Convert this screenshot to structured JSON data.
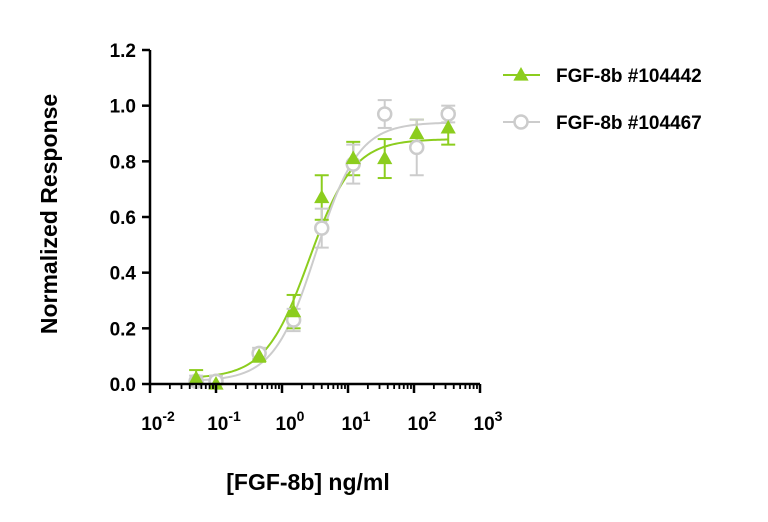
{
  "chart_data": {
    "type": "scatter",
    "xlabel": "[FGF-8b] ng/ml",
    "ylabel": "Normalized Response",
    "xscale": "log",
    "xlim": [
      0.01,
      1000
    ],
    "ylim": [
      0,
      1.2
    ],
    "x_ticks": [
      {
        "value": 0.01,
        "base": "10",
        "exp": "-2"
      },
      {
        "value": 0.1,
        "base": "10",
        "exp": "-1"
      },
      {
        "value": 1,
        "base": "10",
        "exp": "0"
      },
      {
        "value": 10,
        "base": "10",
        "exp": "1"
      },
      {
        "value": 100,
        "base": "10",
        "exp": "2"
      },
      {
        "value": 1000,
        "base": "10",
        "exp": "3"
      }
    ],
    "y_ticks": [
      {
        "value": 0.0,
        "label": "0.0"
      },
      {
        "value": 0.2,
        "label": "0.2"
      },
      {
        "value": 0.4,
        "label": "0.4"
      },
      {
        "value": 0.6,
        "label": "0.6"
      },
      {
        "value": 0.8,
        "label": "0.8"
      },
      {
        "value": 1.0,
        "label": "1.0"
      },
      {
        "value": 1.2,
        "label": "1.2"
      }
    ],
    "grid": false,
    "legend_position": "top-right",
    "series": [
      {
        "name": "FGF-8b #104442",
        "marker": "triangle",
        "color": "#8ccd1e",
        "fit": {
          "bottom": 0.02,
          "top": 0.88,
          "ec50": 2.6,
          "hill": 1.3
        },
        "points": [
          {
            "x": 0.05,
            "y": 0.02,
            "err": 0.03
          },
          {
            "x": 0.1,
            "y": 0.0,
            "err": 0.01
          },
          {
            "x": 0.45,
            "y": 0.1,
            "err": 0.02
          },
          {
            "x": 1.5,
            "y": 0.26,
            "err": 0.06
          },
          {
            "x": 4.0,
            "y": 0.67,
            "err": 0.08
          },
          {
            "x": 12,
            "y": 0.81,
            "err": 0.06
          },
          {
            "x": 36,
            "y": 0.81,
            "err": 0.07
          },
          {
            "x": 110,
            "y": 0.9,
            "err": 0.05
          },
          {
            "x": 330,
            "y": 0.92,
            "err": 0.06
          }
        ]
      },
      {
        "name": "FGF-8b #104467",
        "marker": "circle",
        "color": "#cccccc",
        "fit": {
          "bottom": 0.01,
          "top": 0.94,
          "ec50": 3.3,
          "hill": 1.35
        },
        "points": [
          {
            "x": 0.05,
            "y": 0.01,
            "err": 0.02
          },
          {
            "x": 0.1,
            "y": 0.01,
            "err": 0.02
          },
          {
            "x": 0.45,
            "y": 0.11,
            "err": 0.02
          },
          {
            "x": 1.5,
            "y": 0.23,
            "err": 0.04
          },
          {
            "x": 4.0,
            "y": 0.56,
            "err": 0.07
          },
          {
            "x": 12,
            "y": 0.79,
            "err": 0.07
          },
          {
            "x": 36,
            "y": 0.97,
            "err": 0.05
          },
          {
            "x": 110,
            "y": 0.85,
            "err": 0.1
          },
          {
            "x": 330,
            "y": 0.97,
            "err": 0.03
          }
        ]
      }
    ]
  }
}
